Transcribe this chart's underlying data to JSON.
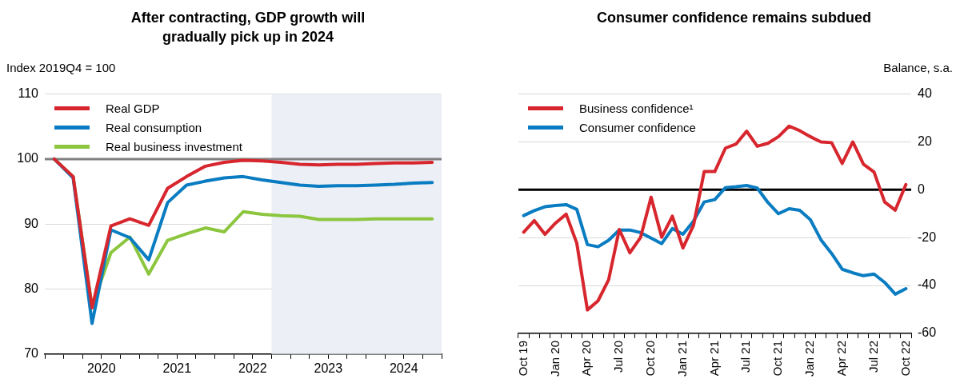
{
  "chart_data": [
    {
      "type": "line",
      "title": "After contracting, GDP growth will gradually pick up in 2024",
      "ylabel": "Index 2019Q4 = 100",
      "x": [
        2019.875,
        2020.125,
        2020.375,
        2020.625,
        2020.875,
        2021.125,
        2021.375,
        2021.625,
        2021.875,
        2022.125,
        2022.375,
        2022.625,
        2022.875,
        2023.125,
        2023.375,
        2023.625,
        2023.875,
        2024.125,
        2024.375,
        2024.625,
        2024.875
      ],
      "series": [
        {
          "name": "Real GDP",
          "color": "#d7262e",
          "values": [
            100,
            97.3,
            77.1,
            89.7,
            90.8,
            89.8,
            95.5,
            97.3,
            98.9,
            99.5,
            99.8,
            99.7,
            99.5,
            99.2,
            99.1,
            99.2,
            99.2,
            99.3,
            99.4,
            99.4,
            99.5
          ]
        },
        {
          "name": "Real consumption",
          "color": "#0a7cc1",
          "values": [
            100,
            97.1,
            74.7,
            89.1,
            87.9,
            84.5,
            93.3,
            96.0,
            96.6,
            97.1,
            97.3,
            96.8,
            96.4,
            96.0,
            95.8,
            95.9,
            95.9,
            96.0,
            96.1,
            96.3,
            96.4
          ]
        },
        {
          "name": "Real business investment",
          "color": "#8cc63f",
          "values": [
            100,
            97.3,
            77.3,
            85.6,
            88.0,
            82.3,
            87.5,
            88.5,
            89.4,
            88.8,
            91.9,
            91.5,
            91.3,
            91.2,
            90.7,
            90.7,
            90.7,
            90.8,
            90.8,
            90.8,
            90.8
          ]
        }
      ],
      "xlim": [
        2019.75,
        2025
      ],
      "xticks": [
        {
          "value": 2019.75,
          "label": null
        },
        {
          "value": 2020,
          "label": null
        },
        {
          "value": 2020.25,
          "label": null
        },
        {
          "value": 2020.5,
          "label": "2020"
        },
        {
          "value": 2020.75,
          "label": null
        },
        {
          "value": 2021,
          "label": null
        },
        {
          "value": 2021.25,
          "label": null
        },
        {
          "value": 2021.5,
          "label": "2021"
        },
        {
          "value": 2021.75,
          "label": null
        },
        {
          "value": 2022,
          "label": null
        },
        {
          "value": 2022.25,
          "label": null
        },
        {
          "value": 2022.5,
          "label": "2022"
        },
        {
          "value": 2022.75,
          "label": null
        },
        {
          "value": 2023,
          "label": null
        },
        {
          "value": 2023.25,
          "label": null
        },
        {
          "value": 2023.5,
          "label": "2023"
        },
        {
          "value": 2023.75,
          "label": null
        },
        {
          "value": 2024,
          "label": null
        },
        {
          "value": 2024.25,
          "label": null
        },
        {
          "value": 2024.5,
          "label": "2024"
        },
        {
          "value": 2024.75,
          "label": null
        },
        {
          "value": 2025,
          "label": null
        }
      ],
      "ylim": [
        70,
        110
      ],
      "yticks": [
        70,
        80,
        90,
        100,
        110
      ],
      "ref_lines": [
        {
          "axis": "y",
          "value": 100,
          "color": "#808080"
        }
      ],
      "bands": [
        {
          "axis": "x",
          "from": 2022.75,
          "to": 2025,
          "color": "#eceff6"
        }
      ],
      "grid": "y",
      "legend": "top left",
      "marker": "none",
      "line_style": "solid"
    },
    {
      "type": "line",
      "title": "Consumer confidence remains subdued",
      "ylabel": "Balance, s.a.",
      "categories": [
        "Oct 19",
        null,
        null,
        "Jan 20",
        null,
        null,
        "Apr 20",
        null,
        null,
        "Jul 20",
        null,
        null,
        "Oct 20",
        null,
        null,
        "Jan 21",
        null,
        null,
        "Apr 21",
        null,
        null,
        "Jul 21",
        null,
        null,
        "Oct 21",
        null,
        null,
        "Jan 22",
        null,
        null,
        "Apr 22",
        null,
        null,
        "Jul 22",
        null,
        null,
        "Oct 22"
      ],
      "series": [
        {
          "name": "Business confidence¹",
          "color": "#d7262e",
          "values": [
            -17.7,
            -12.9,
            -18.6,
            -13.9,
            -10.2,
            -22.3,
            -50.2,
            -46.4,
            -37.6,
            -16.6,
            -26.3,
            -20,
            -3.1,
            -19.8,
            -11,
            -24.3,
            -14.8,
            7.6,
            7.6,
            17.4,
            19.1,
            24.5,
            18.2,
            19.4,
            22.2,
            26.6,
            24.7,
            22.2,
            20,
            19.7,
            11,
            20,
            10.7,
            7.4,
            -5.1,
            -8.5,
            2.2
          ]
        },
        {
          "name": "Consumer confidence",
          "color": "#0a7cc1",
          "values": [
            -10.8,
            -8.7,
            -7.1,
            -6.6,
            -6.2,
            -8.2,
            -22.9,
            -23.8,
            -21.1,
            -16.8,
            -16.8,
            -17.9,
            -20.2,
            -22.5,
            -16.2,
            -18.6,
            -13.1,
            -5.1,
            -4.1,
            0.9,
            1.3,
            1.8,
            0.7,
            -5.3,
            -10,
            -7.9,
            -8.6,
            -12.5,
            -20.9,
            -26.6,
            -33.2,
            -34.7,
            -35.9,
            -35.2,
            -38.7,
            -43.6,
            -41.3
          ]
        }
      ],
      "ylim": [
        -60,
        40
      ],
      "yticks": [
        -60,
        -40,
        -20,
        0,
        20,
        40
      ],
      "ref_lines": [
        {
          "axis": "y",
          "value": 0,
          "color": "#000000"
        }
      ],
      "grid": "y",
      "legend": "top left",
      "marker": "none",
      "line_style": "solid"
    }
  ]
}
